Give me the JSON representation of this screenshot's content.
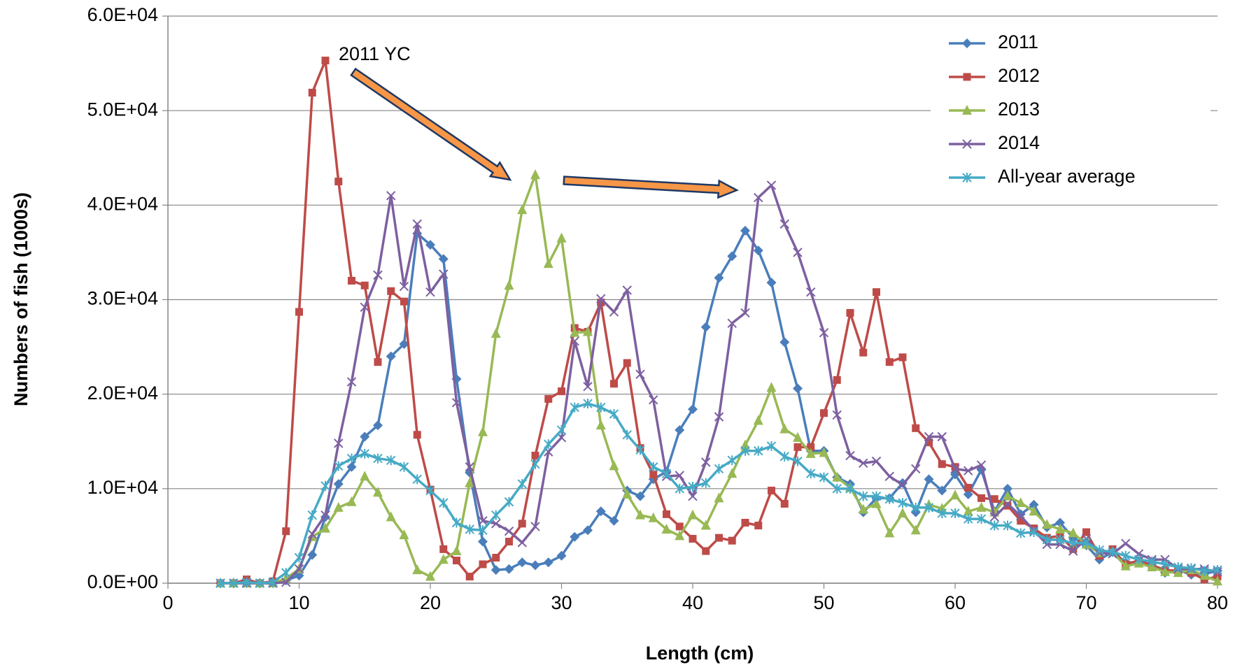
{
  "chart_data": {
    "type": "line",
    "x_label": "Length (cm)",
    "y_label": "Numbers of fish (1000s)",
    "annotation": "2011 YC",
    "x": [
      4,
      5,
      6,
      7,
      8,
      9,
      10,
      11,
      12,
      13,
      14,
      15,
      16,
      17,
      18,
      19,
      20,
      21,
      22,
      23,
      24,
      25,
      26,
      27,
      28,
      29,
      30,
      31,
      32,
      33,
      34,
      35,
      36,
      37,
      38,
      39,
      40,
      41,
      42,
      43,
      44,
      45,
      46,
      47,
      48,
      49,
      50,
      51,
      52,
      53,
      54,
      55,
      56,
      57,
      58,
      59,
      60,
      61,
      62,
      63,
      64,
      65,
      66,
      67,
      68,
      69,
      70,
      71,
      72,
      73,
      74,
      75,
      76,
      77,
      78,
      79,
      80
    ],
    "series": [
      {
        "name": "2011",
        "color": "#4a7ebb",
        "marker": "diamond",
        "values": [
          0,
          0,
          0,
          0,
          0,
          300,
          800,
          3000,
          7000,
          10500,
          12300,
          15500,
          16700,
          24000,
          25300,
          37000,
          35800,
          34300,
          21600,
          11700,
          4400,
          1400,
          1500,
          2200,
          1900,
          2200,
          2900,
          4900,
          5600,
          7600,
          6600,
          9800,
          9200,
          11000,
          11800,
          16200,
          18400,
          27100,
          32300,
          34600,
          37300,
          35200,
          31800,
          25500,
          20600,
          14000,
          14000,
          11200,
          10500,
          7500,
          9000,
          9000,
          10600,
          7500,
          11000,
          9800,
          11500,
          9400,
          12000,
          7600,
          10000,
          7300,
          8300,
          5900,
          6400,
          4800,
          4000,
          2500,
          3300,
          2200,
          2200,
          2000,
          1100,
          1400,
          900,
          1000,
          1300
        ]
      },
      {
        "name": "2012",
        "color": "#be4b48",
        "marker": "square",
        "values": [
          0,
          0,
          400,
          0,
          200,
          5500,
          28700,
          51900,
          55300,
          42500,
          32000,
          31500,
          23400,
          30900,
          29800,
          15700,
          9900,
          3600,
          2400,
          700,
          2000,
          2700,
          4400,
          6300,
          13500,
          19500,
          20300,
          27000,
          26600,
          29700,
          21100,
          23300,
          14300,
          11500,
          7300,
          6000,
          4700,
          3400,
          4800,
          4500,
          6400,
          6100,
          9800,
          8400,
          14400,
          14400,
          18000,
          21500,
          28600,
          24400,
          30800,
          23400,
          23900,
          16400,
          14900,
          12600,
          12300,
          10100,
          9000,
          8900,
          8200,
          6600,
          5800,
          4800,
          5000,
          3600,
          5400,
          2900,
          3600,
          2000,
          2400,
          1900,
          1400,
          1300,
          1100,
          400,
          700
        ]
      },
      {
        "name": "2013",
        "color": "#98b954",
        "marker": "triangle",
        "values": [
          0,
          0,
          0,
          0,
          0,
          500,
          1500,
          4900,
          5800,
          8000,
          8600,
          11300,
          9600,
          7000,
          5100,
          1400,
          700,
          2500,
          3400,
          10600,
          16000,
          26400,
          31500,
          39500,
          43200,
          33800,
          36500,
          26500,
          26600,
          16700,
          12400,
          9400,
          7200,
          6900,
          5700,
          5000,
          7200,
          6100,
          9000,
          11600,
          14600,
          17200,
          20700,
          16300,
          15400,
          13700,
          13800,
          11200,
          10100,
          7800,
          8400,
          5300,
          7400,
          5600,
          8300,
          7900,
          9300,
          7600,
          8000,
          7500,
          9200,
          8500,
          7600,
          6200,
          5700,
          5300,
          4100,
          3200,
          3300,
          1800,
          2100,
          1700,
          1200,
          1100,
          1400,
          800,
          200
        ]
      },
      {
        "name": "2014",
        "color": "#7d60a0",
        "marker": "x",
        "values": [
          0,
          0,
          0,
          0,
          0,
          100,
          1500,
          5200,
          7200,
          14800,
          21300,
          29200,
          32600,
          41000,
          31400,
          38000,
          30800,
          32700,
          19100,
          12300,
          6600,
          6300,
          5500,
          4300,
          6000,
          13900,
          15400,
          25600,
          20800,
          30100,
          28700,
          31000,
          22100,
          19400,
          11300,
          11400,
          9200,
          12800,
          17600,
          27500,
          28600,
          40800,
          42100,
          38000,
          35000,
          30800,
          26500,
          17800,
          13500,
          12700,
          12900,
          11300,
          10400,
          12100,
          15500,
          15500,
          12100,
          11900,
          12500,
          7000,
          8400,
          7100,
          5600,
          4100,
          4100,
          3400,
          4700,
          3200,
          3100,
          4200,
          3100,
          2500,
          2500,
          1500,
          1500,
          1500,
          1200
        ]
      },
      {
        "name": "All-year average",
        "color": "#46aac5",
        "marker": "star",
        "values": [
          0,
          0,
          100,
          0,
          100,
          1100,
          2700,
          7200,
          10300,
          12400,
          13200,
          13700,
          13200,
          13000,
          12300,
          11000,
          9800,
          8500,
          6400,
          5700,
          5600,
          7200,
          8600,
          10500,
          12600,
          14700,
          16200,
          18600,
          19000,
          18600,
          17900,
          15700,
          14100,
          12300,
          11600,
          10000,
          10200,
          10600,
          12100,
          13000,
          14000,
          14000,
          14500,
          13400,
          12900,
          11600,
          11200,
          10000,
          10000,
          9200,
          9200,
          8900,
          8500,
          8000,
          8000,
          7400,
          7400,
          6800,
          6800,
          6100,
          6100,
          5300,
          5400,
          4600,
          4600,
          4200,
          4300,
          3500,
          3300,
          2900,
          2500,
          2300,
          2000,
          1700,
          1600,
          1300,
          1400
        ]
      }
    ],
    "xlim": [
      0,
      80
    ],
    "xticks": [
      0,
      10,
      20,
      30,
      40,
      50,
      60,
      70,
      80
    ],
    "ylim": [
      0,
      60000
    ],
    "yticks": [
      {
        "value": 0,
        "label": "0.0E+00"
      },
      {
        "value": 10000,
        "label": "1.0E+04"
      },
      {
        "value": 20000,
        "label": "2.0E+04"
      },
      {
        "value": 30000,
        "label": "3.0E+04"
      },
      {
        "value": 40000,
        "label": "4.0E+04"
      },
      {
        "value": 50000,
        "label": "5.0E+04"
      },
      {
        "value": 60000,
        "label": "6.0E+04"
      }
    ],
    "grid": true,
    "legend": "top-right"
  }
}
